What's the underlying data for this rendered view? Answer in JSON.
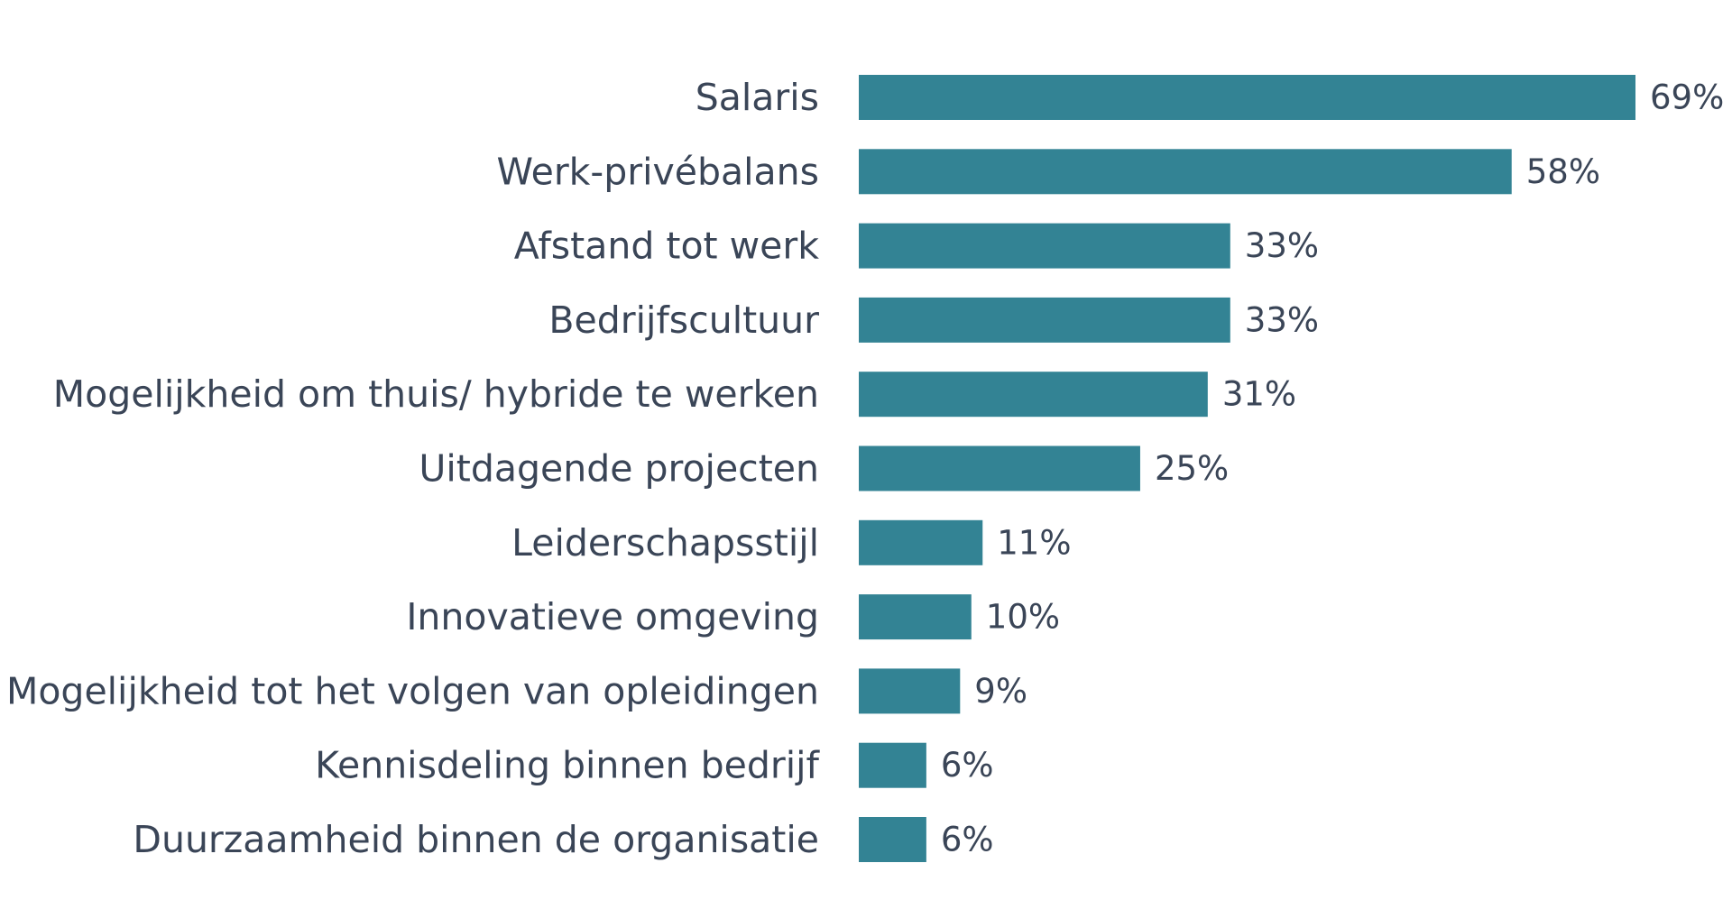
{
  "chart_data": {
    "type": "bar",
    "orientation": "horizontal",
    "title": "",
    "xlabel": "",
    "ylabel": "",
    "value_suffix": "%",
    "xlim": [
      0,
      69
    ],
    "bar_color": "#338394",
    "text_color": "#3a4557",
    "categories": [
      "Salaris",
      "Werk-privébalans",
      "Afstand tot werk",
      "Bedrijfscultuur",
      "Mogelijkheid om thuis/ hybride te werken",
      "Uitdagende projecten",
      "Leiderschapsstijl",
      "Innovatieve omgeving",
      "Mogelijkheid tot het volgen van opleidingen",
      "Kennisdeling binnen bedrijf",
      "Duurzaamheid binnen de organisatie"
    ],
    "values": [
      69,
      58,
      33,
      33,
      31,
      25,
      11,
      10,
      9,
      6,
      6
    ],
    "value_labels": [
      "69%",
      "58%",
      "33%",
      "33%",
      "31%",
      "25%",
      "11%",
      "10%",
      "9%",
      "6%",
      "6%"
    ]
  }
}
